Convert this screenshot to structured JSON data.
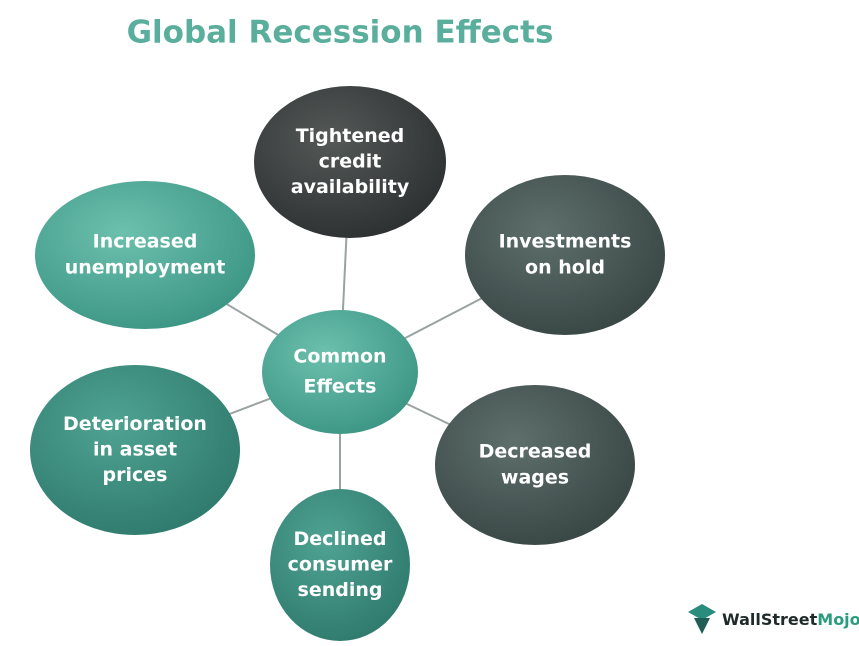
{
  "title": "Global Recession Effects",
  "center": {
    "lines": [
      "Common",
      "Effects"
    ]
  },
  "nodes": [
    {
      "lines": [
        "Tightened",
        "credit",
        "availability"
      ]
    },
    {
      "lines": [
        "Investments",
        "on hold"
      ]
    },
    {
      "lines": [
        "Decreased",
        "wages"
      ]
    },
    {
      "lines": [
        "Declined",
        "consumer",
        "sending"
      ]
    },
    {
      "lines": [
        "Deterioration",
        "in asset",
        "prices"
      ]
    },
    {
      "lines": [
        "Increased",
        "unemployment"
      ]
    }
  ],
  "logo": {
    "part1": "WallStreet",
    "part2": "Mojo"
  }
}
